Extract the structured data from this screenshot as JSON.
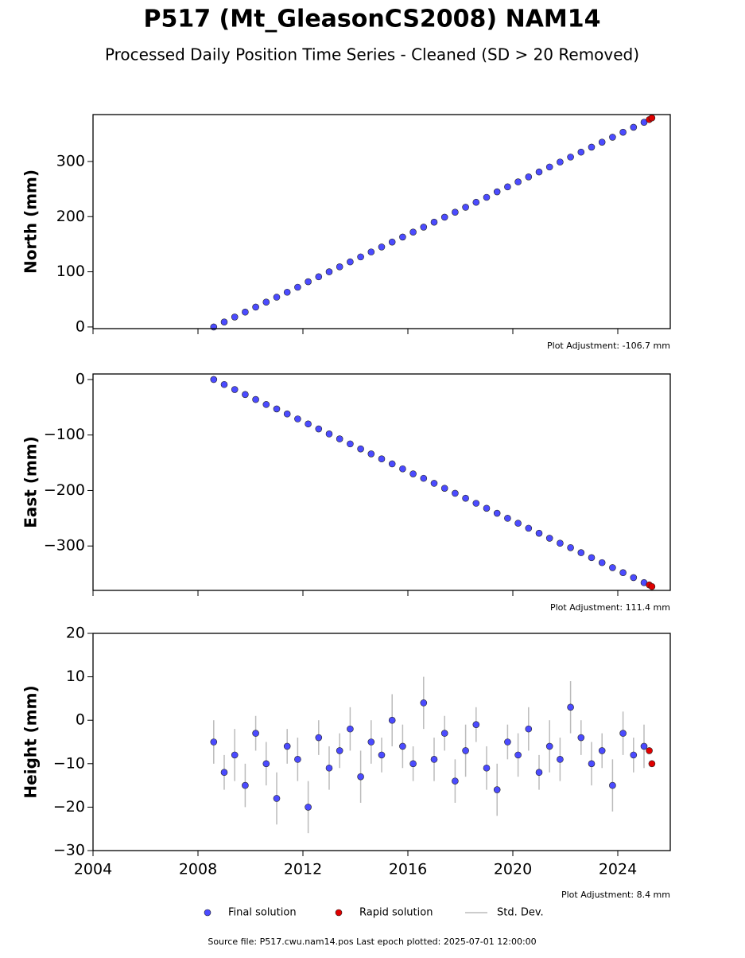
{
  "title": "P517 (Mt_GleasonCS2008) NAM14",
  "subtitle": "Processed Daily Position Time Series - Cleaned (SD > 20 Removed)",
  "source": "Source file: P517.cwu.nam14.pos  Last epoch plotted: 2025-07-01 12:00:00",
  "legend": [
    {
      "name": "Final solution",
      "color": "#4b4bff"
    },
    {
      "name": "Rapid solution",
      "color": "#e00000"
    },
    {
      "name": "Std. Dev.",
      "color": "#bbbbbb"
    }
  ],
  "chart_data": [
    {
      "type": "scatter",
      "ylabel": "North (mm)",
      "annotation": "Plot Adjustment: -106.7 mm",
      "xlim": [
        2004,
        2026
      ],
      "ylim": [
        -3,
        385
      ],
      "yticks": [
        0,
        100,
        200,
        300
      ],
      "final": {
        "x": [
          2008.6,
          2009.0,
          2009.4,
          2009.8,
          2010.2,
          2010.6,
          2011.0,
          2011.4,
          2011.8,
          2012.2,
          2012.6,
          2013.0,
          2013.4,
          2013.8,
          2014.2,
          2014.6,
          2015.0,
          2015.4,
          2015.8,
          2016.2,
          2016.6,
          2017.0,
          2017.4,
          2017.8,
          2018.2,
          2018.6,
          2019.0,
          2019.4,
          2019.8,
          2020.2,
          2020.6,
          2021.0,
          2021.4,
          2021.8,
          2022.2,
          2022.6,
          2023.0,
          2023.4,
          2023.8,
          2024.2,
          2024.6,
          2025.0
        ],
        "values": [
          0,
          9,
          18,
          27,
          36,
          45,
          54,
          63,
          72,
          82,
          91,
          100,
          109,
          118,
          127,
          136,
          145,
          154,
          163,
          172,
          181,
          190,
          199,
          208,
          217,
          226,
          235,
          245,
          254,
          263,
          272,
          281,
          290,
          299,
          308,
          317,
          326,
          335,
          344,
          353,
          362,
          371
        ]
      },
      "rapid": {
        "x": [
          2025.2,
          2025.3
        ],
        "values": [
          376,
          379
        ]
      }
    },
    {
      "type": "scatter",
      "ylabel": "East (mm)",
      "annotation": "Plot Adjustment: 111.4 mm",
      "xlim": [
        2004,
        2026
      ],
      "ylim": [
        -380,
        10
      ],
      "yticks": [
        {
          "value": -300,
          "label": "−300"
        },
        {
          "value": -200,
          "label": "−200"
        },
        {
          "value": -100,
          "label": "−100"
        },
        0
      ],
      "final": {
        "x": [
          2008.6,
          2009.0,
          2009.4,
          2009.8,
          2010.2,
          2010.6,
          2011.0,
          2011.4,
          2011.8,
          2012.2,
          2012.6,
          2013.0,
          2013.4,
          2013.8,
          2014.2,
          2014.6,
          2015.0,
          2015.4,
          2015.8,
          2016.2,
          2016.6,
          2017.0,
          2017.4,
          2017.8,
          2018.2,
          2018.6,
          2019.0,
          2019.4,
          2019.8,
          2020.2,
          2020.6,
          2021.0,
          2021.4,
          2021.8,
          2022.2,
          2022.6,
          2023.0,
          2023.4,
          2023.8,
          2024.2,
          2024.6,
          2025.0
        ],
        "values": [
          0,
          -9,
          -18,
          -27,
          -36,
          -45,
          -53,
          -62,
          -71,
          -80,
          -89,
          -98,
          -107,
          -116,
          -125,
          -134,
          -143,
          -152,
          -161,
          -170,
          -178,
          -187,
          -196,
          -205,
          -214,
          -223,
          -232,
          -241,
          -250,
          -259,
          -268,
          -277,
          -286,
          -295,
          -303,
          -312,
          -321,
          -330,
          -339,
          -348,
          -357,
          -366
        ]
      },
      "rapid": {
        "x": [
          2025.2,
          2025.3
        ],
        "values": [
          -370,
          -373
        ]
      }
    },
    {
      "type": "scatter",
      "ylabel": "Height (mm)",
      "annotation": "Plot Adjustment: 8.4 mm",
      "xlim": [
        2004,
        2026
      ],
      "ylim": [
        -30,
        20
      ],
      "yticks": [
        {
          "value": -30,
          "label": "−30"
        },
        {
          "value": -20,
          "label": "−20"
        },
        {
          "value": -10,
          "label": "−10"
        },
        0,
        10,
        20
      ],
      "xticks": [
        2004,
        2008,
        2012,
        2016,
        2020,
        2024
      ],
      "final": {
        "x": [
          2008.6,
          2009.0,
          2009.4,
          2009.8,
          2010.2,
          2010.6,
          2011.0,
          2011.4,
          2011.8,
          2012.2,
          2012.6,
          2013.0,
          2013.4,
          2013.8,
          2014.2,
          2014.6,
          2015.0,
          2015.4,
          2015.8,
          2016.2,
          2016.6,
          2017.0,
          2017.4,
          2017.8,
          2018.2,
          2018.6,
          2019.0,
          2019.4,
          2019.8,
          2020.2,
          2020.6,
          2021.0,
          2021.4,
          2021.8,
          2022.2,
          2022.6,
          2023.0,
          2023.4,
          2023.8,
          2024.2,
          2024.6,
          2025.0
        ],
        "values": [
          -5,
          -12,
          -8,
          -15,
          -3,
          -10,
          -18,
          -6,
          -9,
          -20,
          -4,
          -11,
          -7,
          -2,
          -13,
          -5,
          -8,
          0,
          -6,
          -10,
          4,
          -9,
          -3,
          -14,
          -7,
          -1,
          -11,
          -16,
          -5,
          -8,
          -2,
          -12,
          -6,
          -9,
          3,
          -4,
          -10,
          -7,
          -15,
          -3,
          -8,
          -6
        ],
        "errors": [
          5,
          4,
          6,
          5,
          4,
          5,
          6,
          4,
          5,
          6,
          4,
          5,
          4,
          5,
          6,
          5,
          4,
          6,
          5,
          4,
          6,
          5,
          4,
          5,
          6,
          4,
          5,
          6,
          4,
          5,
          5,
          4,
          6,
          5,
          6,
          4,
          5,
          4,
          6,
          5,
          4,
          5
        ]
      },
      "rapid": {
        "x": [
          2025.2,
          2025.3
        ],
        "values": [
          -7,
          -10
        ]
      }
    }
  ]
}
